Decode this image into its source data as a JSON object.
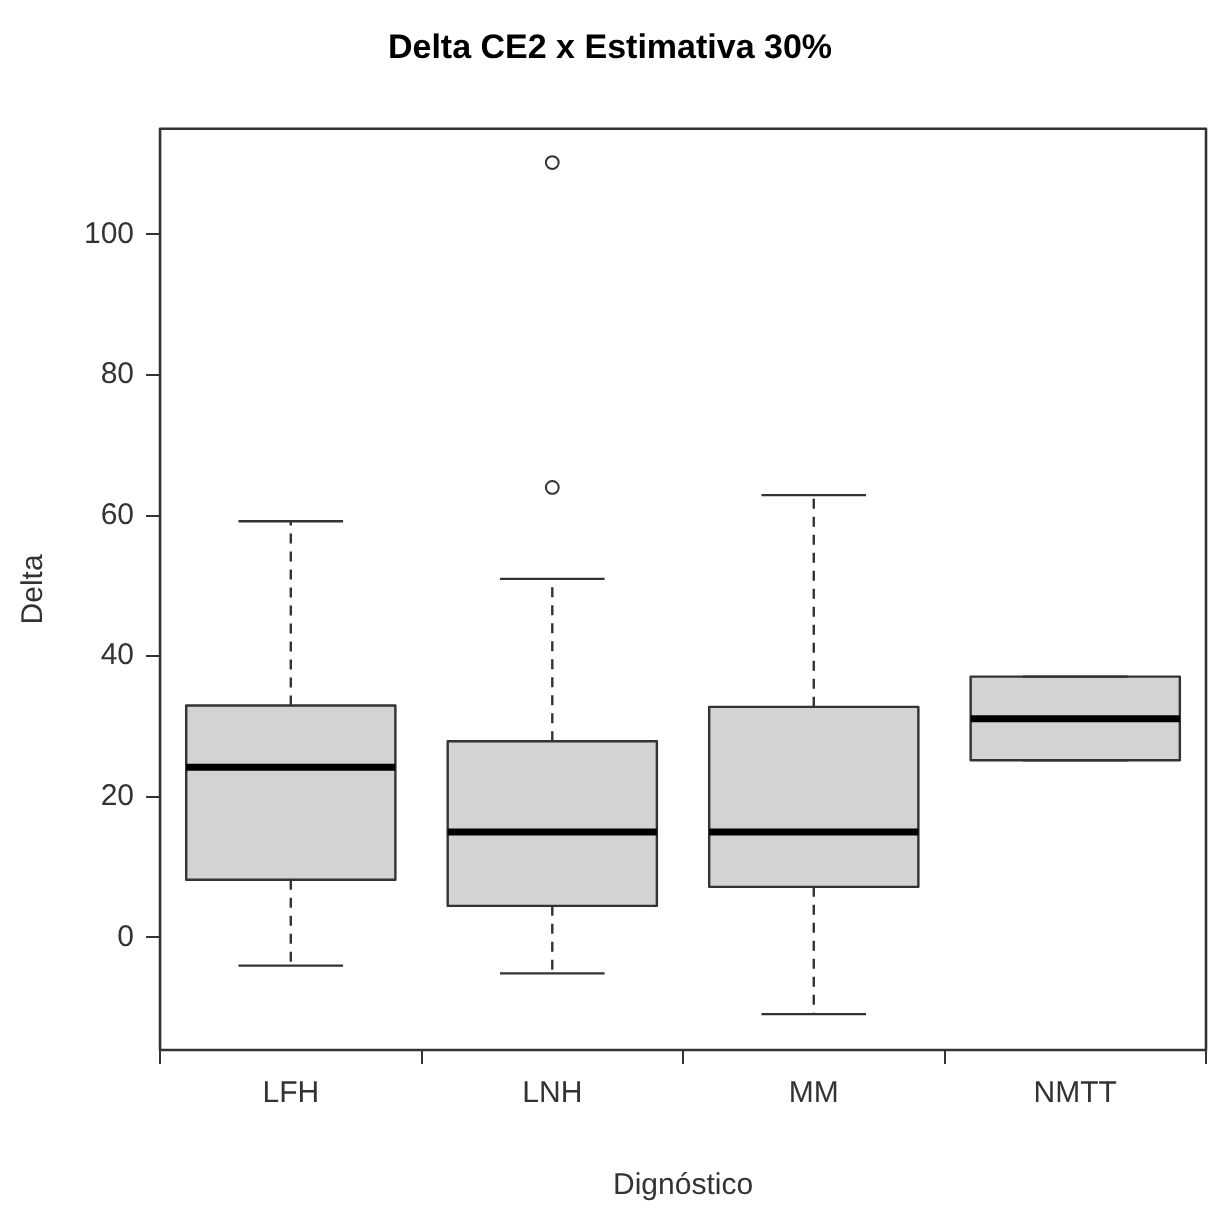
{
  "chart_data": {
    "type": "box",
    "title": "Delta CE2 x Estimativa 30%",
    "xlabel": "Dignóstico",
    "ylabel": "Delta",
    "categories": [
      "LFH",
      "LNH",
      "MM",
      "NMTT"
    ],
    "color": "#d3d3d3",
    "boxes": [
      {
        "low": -4,
        "q1": 8.2,
        "median": 24.2,
        "q3": 33,
        "high": 59.2
      },
      {
        "low": -5.1,
        "q1": 4.5,
        "median": 15,
        "q3": 27.9,
        "high": 51,
        "outliers": [
          64,
          110.2
        ]
      },
      {
        "low": -10.9,
        "q1": 7.2,
        "median": 15,
        "q3": 32.8,
        "high": 62.9
      },
      {
        "low": 25.2,
        "q1": 25.2,
        "median": 31.1,
        "q3": 37.1,
        "high": 37.1
      }
    ],
    "ylim": [
      -16,
      115
    ],
    "yticks": [
      0,
      20,
      40,
      60,
      80,
      100
    ]
  }
}
